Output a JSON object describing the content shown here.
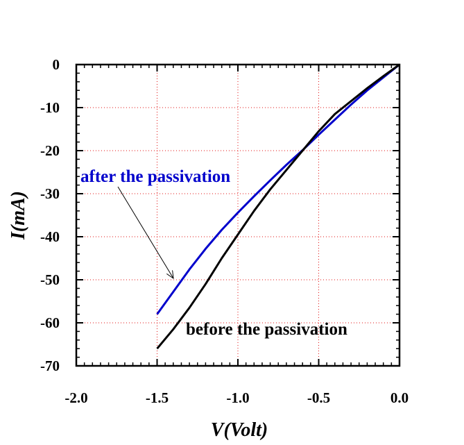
{
  "chart_data": {
    "type": "line",
    "xlabel": "V(Volt)",
    "ylabel": "I(mA)",
    "xlim": [
      -2.0,
      0.0
    ],
    "ylim": [
      -70,
      0
    ],
    "x_ticks": [
      "-2.0",
      "-1.5",
      "-1.0",
      "-0.5",
      "0.0"
    ],
    "y_ticks": [
      "0",
      "-10",
      "-20",
      "-30",
      "-40",
      "-50",
      "-60",
      "-70"
    ],
    "grid": "dotted red at major ticks",
    "series": [
      {
        "label": "after the passivation",
        "color": "#0000cc",
        "x": [
          -1.5,
          -1.4,
          -1.3,
          -1.2,
          -1.1,
          -1.0,
          -0.9,
          -0.8,
          -0.7,
          -0.6,
          -0.5,
          -0.4,
          -0.3,
          -0.2,
          -0.1,
          0.0
        ],
        "y": [
          -58,
          -52.8,
          -47.6,
          -42.8,
          -38.4,
          -34.4,
          -30.6,
          -26.9,
          -23.3,
          -19.9,
          -16.3,
          -12.8,
          -9.3,
          -6.0,
          -3.0,
          0
        ]
      },
      {
        "label": "before the passivation",
        "color": "#000000",
        "x": [
          -1.5,
          -1.4,
          -1.3,
          -1.2,
          -1.1,
          -1.0,
          -0.9,
          -0.8,
          -0.7,
          -0.6,
          -0.5,
          -0.4,
          -0.3,
          -0.2,
          -0.1,
          0.0
        ],
        "y": [
          -66,
          -61.5,
          -56.5,
          -51,
          -45,
          -39.5,
          -34,
          -29,
          -24.5,
          -20,
          -15.5,
          -11.5,
          -8.5,
          -5.5,
          -2.7,
          0
        ]
      }
    ],
    "annotations": [
      {
        "text": "after the passivation",
        "color": "#0000cc",
        "arrow_to": {
          "x": -1.39,
          "y": -49.5
        }
      },
      {
        "text": "before the passivation",
        "color": "#000000"
      }
    ]
  }
}
